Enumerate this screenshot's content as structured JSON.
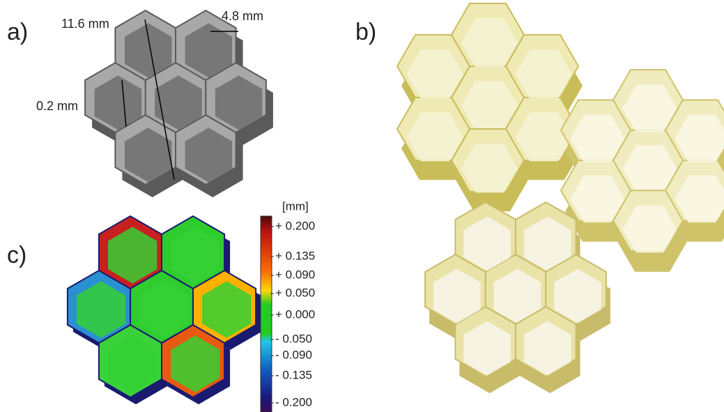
{
  "panel_a": {
    "label": "a)",
    "dimensions": {
      "height": "11.6 mm",
      "cell_width": "4.8 mm",
      "wall": "0.2 mm"
    }
  },
  "panel_b": {
    "label": "b)"
  },
  "panel_c": {
    "label": "c)",
    "colorbar": {
      "unit": "[mm]",
      "labels": [
        "+ 0.200",
        "+ 0.135",
        "+ 0.090",
        "+ 0.050",
        "+ 0.000",
        "- 0.050",
        "- 0.090",
        "- 0.135",
        "- 0.200"
      ]
    }
  }
}
